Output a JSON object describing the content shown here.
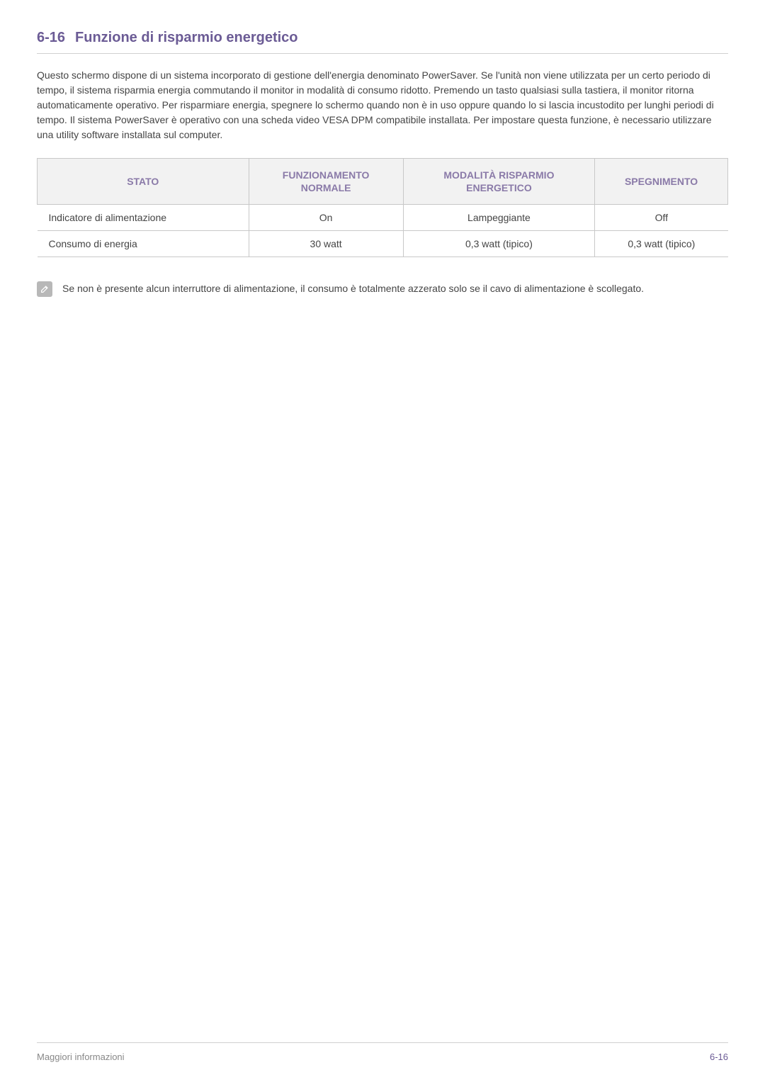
{
  "heading": {
    "number": "6-16",
    "title": "Funzione di risparmio energetico"
  },
  "paragraph": "Questo schermo dispone di un sistema incorporato di gestione dell'energia denominato PowerSaver. Se l'unità non viene utilizzata per un certo periodo di tempo, il sistema risparmia energia commutando il monitor in modalità di consumo ridotto. Premendo un tasto qualsiasi sulla tastiera, il monitor ritorna automaticamente operativo. Per risparmiare energia, spegnere lo schermo quando non è in uso oppure quando lo si lascia incustodito per lunghi periodi di tempo. Il sistema PowerSaver è operativo con una scheda video VESA DPM compatibile installata. Per impostare questa funzione, è necessario utilizzare una utility software installata sul computer.",
  "table": {
    "headers": {
      "c0": "STATO",
      "c1": "FUNZIONAMENTO NORMALE",
      "c2": "MODALITÀ RISPARMIO ENERGETICO",
      "c3": "SPEGNIMENTO"
    },
    "rows": [
      {
        "c0": "Indicatore di alimentazione",
        "c1": "On",
        "c2": "Lampeggiante",
        "c3": "Off"
      },
      {
        "c0": "Consumo di energia",
        "c1": "30 watt",
        "c2": "0,3 watt (tipico)",
        "c3": "0,3 watt (tipico)"
      }
    ],
    "column_widths": [
      "25%",
      "25%",
      "25%",
      "25%"
    ]
  },
  "note": "Se non è presente alcun interruttore di alimentazione, il consumo è totalmente azzerato solo se il cavo di alimentazione è scollegato.",
  "footer": {
    "left": "Maggiori informazioni",
    "right": "6-16"
  },
  "colors": {
    "heading": "#6b5b95",
    "th_text": "#8a7aa8",
    "th_bg": "#f2f2f2",
    "border": "#c8c8c8",
    "body_text": "#444444",
    "footer_text": "#888888",
    "page_number": "#6b5b95",
    "icon_bg": "#b8b8b8"
  }
}
